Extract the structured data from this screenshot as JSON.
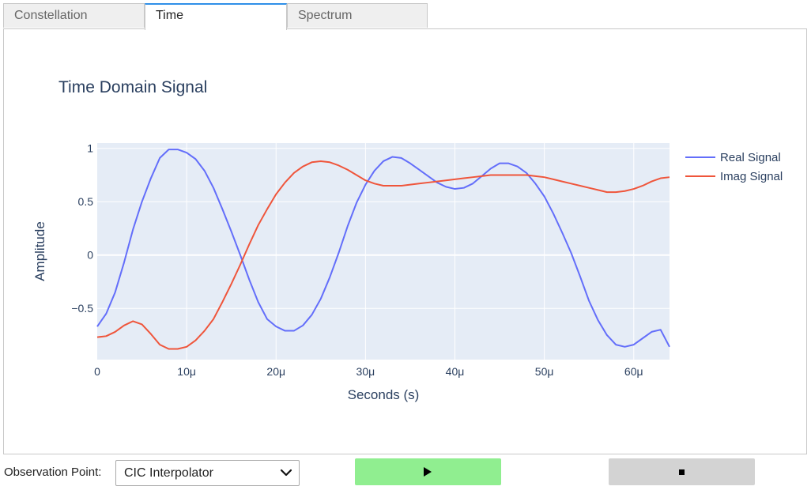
{
  "tabs": [
    {
      "label": "Constellation",
      "active": false
    },
    {
      "label": "Time",
      "active": true
    },
    {
      "label": "Spectrum",
      "active": false
    }
  ],
  "chart_data": {
    "type": "line",
    "title": "Time Domain Signal",
    "xlabel": "Seconds (s)",
    "ylabel": "Amplitude",
    "xlim": [
      0,
      64
    ],
    "ylim": [
      -0.98,
      1.05
    ],
    "x_ticks": [
      {
        "value": 0,
        "label": "0"
      },
      {
        "value": 10,
        "label": "10μ"
      },
      {
        "value": 20,
        "label": "20μ"
      },
      {
        "value": 30,
        "label": "30μ"
      },
      {
        "value": 40,
        "label": "40μ"
      },
      {
        "value": 50,
        "label": "50μ"
      },
      {
        "value": 60,
        "label": "60μ"
      }
    ],
    "y_ticks": [
      {
        "value": 1,
        "label": "1"
      },
      {
        "value": 0.5,
        "label": "0.5"
      },
      {
        "value": 0,
        "label": "0"
      },
      {
        "value": -0.5,
        "label": "−0.5"
      }
    ],
    "grid": true,
    "legend_position": "top-right",
    "series": [
      {
        "name": "Real Signal",
        "color": "#636efa",
        "x": [
          0,
          1,
          2,
          3,
          4,
          5,
          6,
          7,
          8,
          9,
          10,
          11,
          12,
          13,
          14,
          15,
          16,
          17,
          18,
          19,
          20,
          21,
          22,
          23,
          24,
          25,
          26,
          27,
          28,
          29,
          30,
          31,
          32,
          33,
          34,
          35,
          36,
          37,
          38,
          39,
          40,
          41,
          42,
          43,
          44,
          45,
          46,
          47,
          48,
          49,
          50,
          51,
          52,
          53,
          54,
          55,
          56,
          57,
          58,
          59,
          60,
          61,
          62,
          63,
          64
        ],
        "y": [
          -0.67,
          -0.55,
          -0.35,
          -0.07,
          0.24,
          0.5,
          0.72,
          0.91,
          0.99,
          0.99,
          0.96,
          0.9,
          0.79,
          0.63,
          0.43,
          0.22,
          0.0,
          -0.23,
          -0.44,
          -0.6,
          -0.67,
          -0.71,
          -0.71,
          -0.66,
          -0.56,
          -0.41,
          -0.21,
          0.02,
          0.27,
          0.49,
          0.66,
          0.79,
          0.88,
          0.92,
          0.91,
          0.86,
          0.8,
          0.74,
          0.68,
          0.64,
          0.62,
          0.63,
          0.67,
          0.74,
          0.81,
          0.86,
          0.86,
          0.83,
          0.77,
          0.67,
          0.55,
          0.39,
          0.21,
          0.02,
          -0.2,
          -0.43,
          -0.61,
          -0.75,
          -0.84,
          -0.86,
          -0.84,
          -0.78,
          -0.72,
          -0.7,
          -0.86
        ]
      },
      {
        "name": "Imag Signal",
        "color": "#ef553b",
        "x": [
          0,
          1,
          2,
          3,
          4,
          5,
          6,
          7,
          8,
          9,
          10,
          11,
          12,
          13,
          14,
          15,
          16,
          17,
          18,
          19,
          20,
          21,
          22,
          23,
          24,
          25,
          26,
          27,
          28,
          29,
          30,
          31,
          32,
          33,
          34,
          35,
          36,
          37,
          38,
          39,
          40,
          41,
          42,
          43,
          44,
          45,
          46,
          47,
          48,
          49,
          50,
          51,
          52,
          53,
          54,
          55,
          56,
          57,
          58,
          59,
          60,
          61,
          62,
          63,
          64
        ],
        "y": [
          -0.77,
          -0.76,
          -0.72,
          -0.66,
          -0.62,
          -0.65,
          -0.74,
          -0.84,
          -0.88,
          -0.88,
          -0.86,
          -0.8,
          -0.71,
          -0.6,
          -0.44,
          -0.27,
          -0.09,
          0.1,
          0.28,
          0.43,
          0.57,
          0.68,
          0.77,
          0.83,
          0.87,
          0.88,
          0.87,
          0.84,
          0.8,
          0.75,
          0.7,
          0.67,
          0.65,
          0.65,
          0.65,
          0.66,
          0.67,
          0.68,
          0.69,
          0.7,
          0.71,
          0.72,
          0.73,
          0.74,
          0.75,
          0.75,
          0.75,
          0.75,
          0.75,
          0.74,
          0.73,
          0.71,
          0.69,
          0.67,
          0.65,
          0.63,
          0.61,
          0.59,
          0.59,
          0.6,
          0.62,
          0.65,
          0.69,
          0.72,
          0.73
        ]
      }
    ]
  },
  "controls": {
    "observation_label": "Observation Point:",
    "observation_value": "CIC Interpolator",
    "play_icon": "play-icon",
    "stop_icon": "stop-icon",
    "play_color": "#90ee90",
    "stop_color": "#d3d3d3"
  }
}
